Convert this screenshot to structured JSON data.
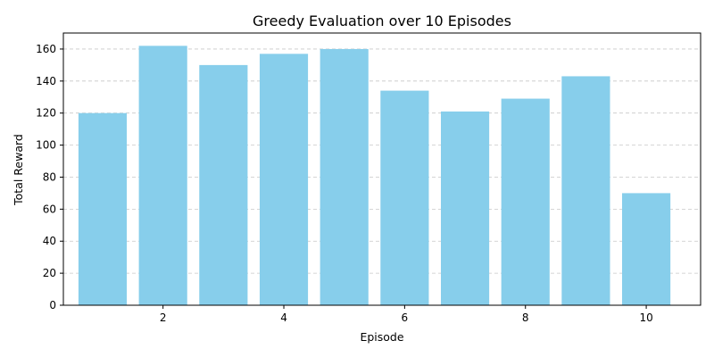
{
  "chart_data": {
    "type": "bar",
    "title": "Greedy Evaluation over 10 Episodes",
    "xlabel": "Episode",
    "ylabel": "Total Reward",
    "x": [
      1,
      2,
      3,
      4,
      5,
      6,
      7,
      8,
      9,
      10
    ],
    "values": [
      120,
      162,
      150,
      157,
      160,
      134,
      121,
      129,
      143,
      70
    ],
    "xlim": [
      0.35,
      10.9
    ],
    "ylim": [
      0,
      170
    ],
    "x_ticks": [
      2,
      4,
      6,
      8,
      10
    ],
    "y_ticks": [
      0,
      20,
      40,
      60,
      80,
      100,
      120,
      140,
      160
    ],
    "bar_color": "#87ceeb",
    "grid": "y-dashed",
    "legend": "none"
  }
}
